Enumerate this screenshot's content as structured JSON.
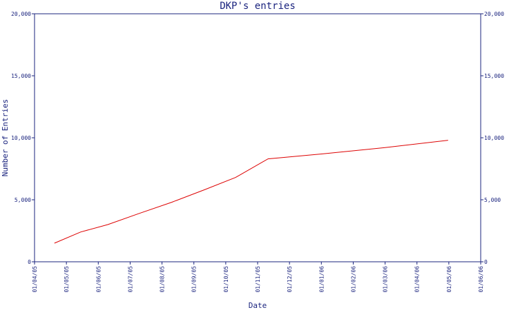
{
  "chart_data": {
    "type": "line",
    "title": "DKP's entries",
    "xlabel": "Date",
    "ylabel": "Number of Entries",
    "x_ticks": [
      "01/04/05",
      "01/05/05",
      "01/06/05",
      "01/07/05",
      "01/08/05",
      "01/09/05",
      "01/10/05",
      "01/11/05",
      "01/12/05",
      "01/01/06",
      "01/02/06",
      "01/03/06",
      "01/04/06",
      "01/05/06",
      "01/06/06"
    ],
    "y_ticks": [
      "0",
      "5,000",
      "10,000",
      "15,000",
      "20,000"
    ],
    "y_tick_values": [
      0,
      5000,
      10000,
      15000,
      20000
    ],
    "ylim": [
      0,
      20000
    ],
    "y_axis_right": true,
    "grid": false,
    "colors": {
      "axis": "#1a237e",
      "series": "#dd0000"
    },
    "series": [
      {
        "x": [
          "2005-04-20",
          "2005-05-15",
          "2005-06-10",
          "2005-07-10",
          "2005-08-10",
          "2005-09-10",
          "2005-10-10",
          "2005-11-10",
          "2006-01-01",
          "2006-03-01",
          "2006-05-01"
        ],
        "y": [
          1500,
          2400,
          3000,
          3900,
          4800,
          5800,
          6800,
          8300,
          8700,
          9200,
          9800
        ]
      }
    ]
  }
}
